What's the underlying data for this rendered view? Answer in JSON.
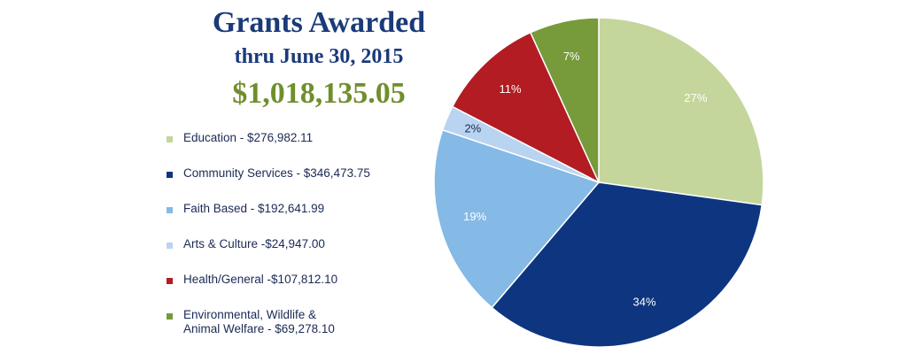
{
  "title": "Grants Awarded",
  "subtitle": "thru June 30, 2015",
  "total": "$1,018,135.05",
  "chart_data": {
    "type": "pie",
    "title": "Grants Awarded",
    "categories": [
      "Education",
      "Community Services",
      "Faith Based",
      "Arts & Culture",
      "Health/General",
      "Environmental, Wildlife & Animal Welfare"
    ],
    "values": [
      276982.11,
      346473.75,
      192641.99,
      24947.0,
      107812.1,
      69278.1
    ],
    "percent_labels": [
      "27%",
      "34%",
      "19%",
      "2%",
      "11%",
      "7%"
    ],
    "legend_labels": [
      "Education - $276,982.11",
      "Community Services - $346,473.75",
      "Faith Based - $192,641.99",
      "Arts & Culture -$24,947.00",
      "Health/General -$107,812.10",
      "Environmental, Wildlife &\nAnimal Welfare - $69,278.10"
    ],
    "colors": [
      "#c4d69b",
      "#0e3580",
      "#85b9e6",
      "#b9d4f0",
      "#b31c22",
      "#779a3b"
    ],
    "label_colors": [
      "#ffffff",
      "#ffffff",
      "#ffffff",
      "#1b2a55",
      "#ffffff",
      "#ffffff"
    ],
    "legend": "left",
    "start_angle": "12 o'clock",
    "direction": "clockwise"
  }
}
